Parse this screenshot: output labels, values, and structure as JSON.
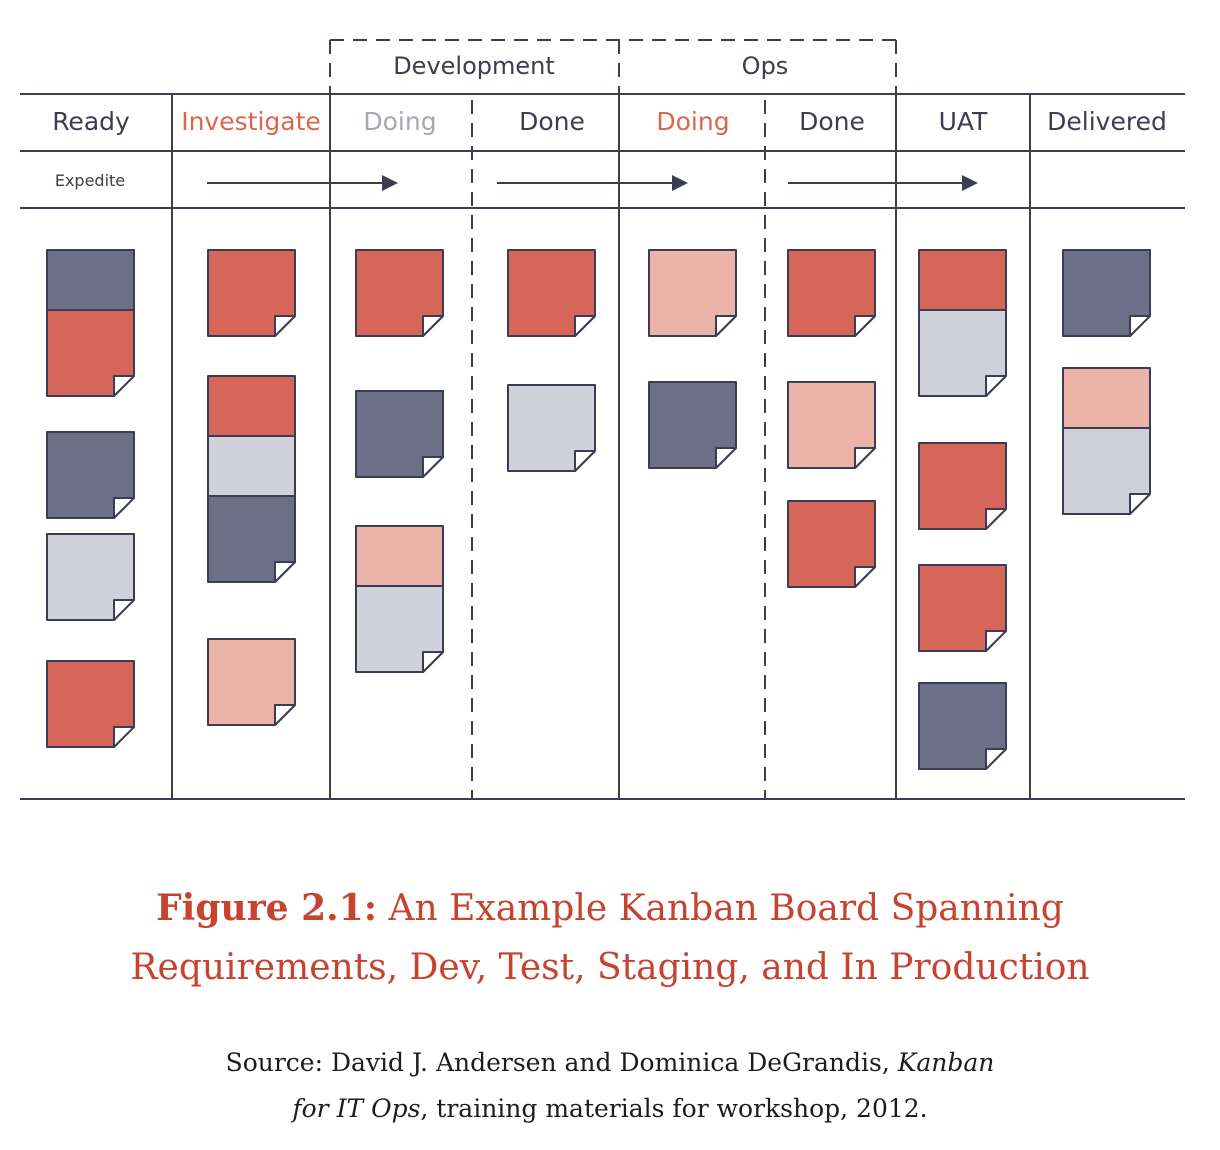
{
  "colors": {
    "line": "#3c3d52",
    "red": "#d6655a",
    "pink": "#ecb4a8",
    "navy": "#6d6f88",
    "grey": "#d0d1db",
    "header_dark": "#3c3d52",
    "header_red": "#d9674f",
    "header_light": "#a5a7b6",
    "caption": "#c6432f"
  },
  "board": {
    "groups": [
      {
        "label": "Development"
      },
      {
        "label": "Ops"
      }
    ],
    "columns": [
      {
        "label": "Ready",
        "color": "header_dark"
      },
      {
        "label": "Investigate",
        "color": "header_red"
      },
      {
        "label": "Doing",
        "color": "header_light"
      },
      {
        "label": "Done",
        "color": "header_dark"
      },
      {
        "label": "Doing",
        "color": "header_red"
      },
      {
        "label": "Done",
        "color": "header_dark"
      },
      {
        "label": "UAT",
        "color": "header_dark"
      },
      {
        "label": "Delivered",
        "color": "header_dark"
      }
    ],
    "expedite_label": "Expedite",
    "cards": [
      {
        "column": "Ready",
        "colors": [
          "navy",
          "red"
        ]
      },
      {
        "column": "Ready",
        "colors": [
          "navy"
        ]
      },
      {
        "column": "Ready",
        "colors": [
          "grey"
        ]
      },
      {
        "column": "Ready",
        "colors": [
          "red"
        ]
      },
      {
        "column": "Investigate",
        "colors": [
          "red"
        ]
      },
      {
        "column": "Investigate",
        "colors": [
          "red",
          "grey",
          "navy"
        ]
      },
      {
        "column": "Investigate",
        "colors": [
          "pink"
        ]
      },
      {
        "column": "Development Doing",
        "colors": [
          "red"
        ]
      },
      {
        "column": "Development Doing",
        "colors": [
          "navy"
        ]
      },
      {
        "column": "Development Doing",
        "colors": [
          "pink",
          "grey"
        ]
      },
      {
        "column": "Development Done",
        "colors": [
          "red"
        ]
      },
      {
        "column": "Development Done",
        "colors": [
          "grey"
        ]
      },
      {
        "column": "Ops Doing",
        "colors": [
          "pink"
        ]
      },
      {
        "column": "Ops Doing",
        "colors": [
          "navy"
        ]
      },
      {
        "column": "Ops Done",
        "colors": [
          "red"
        ]
      },
      {
        "column": "Ops Done",
        "colors": [
          "pink"
        ]
      },
      {
        "column": "Ops Done",
        "colors": [
          "red"
        ]
      },
      {
        "column": "UAT",
        "colors": [
          "red",
          "grey"
        ]
      },
      {
        "column": "UAT",
        "colors": [
          "red"
        ]
      },
      {
        "column": "UAT",
        "colors": [
          "red"
        ]
      },
      {
        "column": "UAT",
        "colors": [
          "navy"
        ]
      },
      {
        "column": "Delivered",
        "colors": [
          "navy"
        ]
      },
      {
        "column": "Delivered",
        "colors": [
          "pink",
          "grey"
        ]
      }
    ]
  },
  "caption": {
    "figure_label": "Figure 2.1:",
    "line1": "An Example Kanban Board Spanning",
    "line2": "Requirements, Dev, Test, Staging, and In Production"
  },
  "source": {
    "line1_prefix": "Source: David J. Andersen and Dominica DeGrandis, ",
    "line1_italic": "Kanban",
    "line2_italic": "for IT Ops",
    "line2_suffix": ", training materials for workshop, 2012."
  }
}
